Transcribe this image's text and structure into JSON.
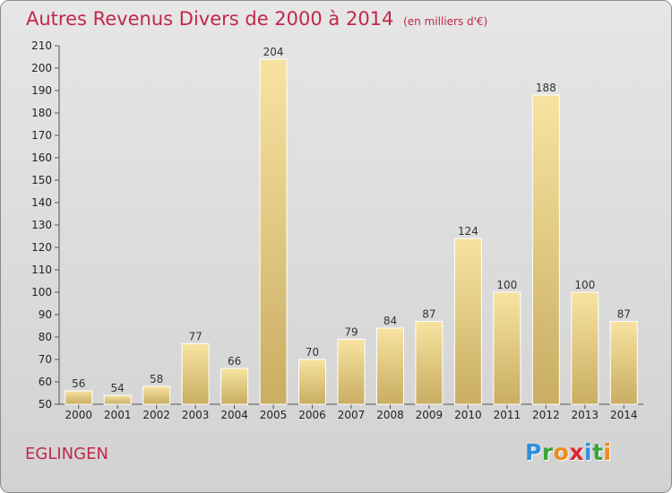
{
  "title": "Autres Revenus Divers de 2000 à 2014",
  "unit": "(en milliers d'€)",
  "commune": "EGLINGEN",
  "logo": {
    "letters": [
      {
        "ch": "P",
        "color": "#2f8fd8"
      },
      {
        "ch": "r",
        "color": "#3aa33a"
      },
      {
        "ch": "o",
        "color": "#f08a1c"
      },
      {
        "ch": "x",
        "color": "#e0262e"
      },
      {
        "ch": "i",
        "color": "#2f8fd8"
      },
      {
        "ch": "t",
        "color": "#3aa33a"
      },
      {
        "ch": "i",
        "color": "#f08a1c"
      }
    ]
  },
  "chart_data": {
    "type": "bar",
    "categories": [
      "2000",
      "2001",
      "2002",
      "2003",
      "2004",
      "2005",
      "2006",
      "2007",
      "2008",
      "2009",
      "2010",
      "2011",
      "2012",
      "2013",
      "2014"
    ],
    "values": [
      56,
      54,
      58,
      77,
      66,
      204,
      70,
      79,
      84,
      87,
      124,
      100,
      188,
      100,
      87
    ],
    "ylim": [
      50,
      210
    ],
    "yticks": [
      50,
      60,
      70,
      80,
      90,
      100,
      110,
      120,
      130,
      140,
      150,
      160,
      170,
      180,
      190,
      200,
      210
    ],
    "grid": false,
    "colors": {
      "bar_light": "#f7e3a0",
      "bar_dark": "#c9ad62",
      "title": "#c0284b"
    }
  }
}
